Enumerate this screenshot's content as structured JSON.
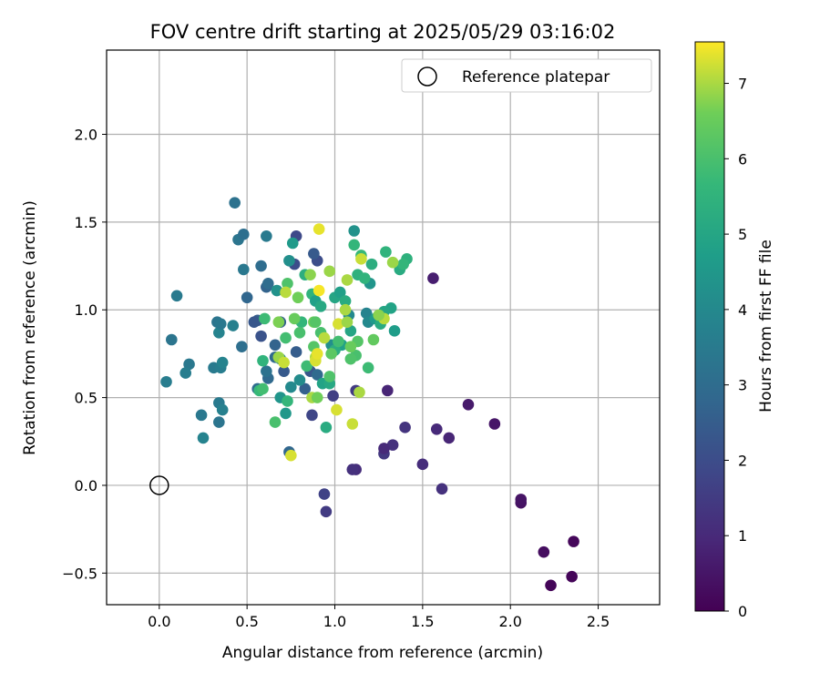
{
  "chart_data": {
    "type": "scatter",
    "title": "FOV centre drift starting at 2025/05/29 03:16:02",
    "xlabel": "Angular distance from reference (arcmin)",
    "ylabel": "Rotation from reference (arcmin)",
    "xlim": [
      -0.3,
      2.85
    ],
    "ylim": [
      -0.68,
      2.48
    ],
    "xticks": [
      0.0,
      0.5,
      1.0,
      1.5,
      2.0,
      2.5
    ],
    "xtick_labels": [
      "0.0",
      "0.5",
      "1.0",
      "1.5",
      "2.0",
      "2.5"
    ],
    "yticks": [
      -0.5,
      0.0,
      0.5,
      1.0,
      1.5,
      2.0
    ],
    "ytick_labels": [
      "−0.5",
      "0.0",
      "0.5",
      "1.0",
      "1.5",
      "2.0"
    ],
    "grid": true,
    "legend": {
      "placement": "top-right",
      "entries": [
        "Reference platepar"
      ]
    },
    "reference_point": {
      "x": 0.0,
      "y": 0.0
    },
    "colorbar": {
      "label": "Hours from first FF file",
      "colormap": "viridis",
      "range": [
        0,
        7.55
      ],
      "ticks": [
        0,
        1,
        2,
        3,
        4,
        5,
        6,
        7
      ],
      "tick_labels": [
        "0",
        "1",
        "2",
        "3",
        "4",
        "5",
        "6",
        "7"
      ]
    },
    "colors": {
      "grid": "#b0b0b0",
      "reference_marker": "#000000"
    },
    "points": [
      {
        "x": 2.23,
        "y": -0.57,
        "c": 0.1
      },
      {
        "x": 2.35,
        "y": -0.52,
        "c": 0.1
      },
      {
        "x": 2.19,
        "y": -0.38,
        "c": 0.3
      },
      {
        "x": 2.36,
        "y": -0.32,
        "c": 0.15
      },
      {
        "x": 2.06,
        "y": -0.1,
        "c": 0.4
      },
      {
        "x": 2.06,
        "y": -0.08,
        "c": 0.45
      },
      {
        "x": 1.91,
        "y": 0.35,
        "c": 0.5
      },
      {
        "x": 1.76,
        "y": 0.46,
        "c": 0.6
      },
      {
        "x": 1.56,
        "y": 1.18,
        "c": 0.7
      },
      {
        "x": 1.65,
        "y": 0.27,
        "c": 0.9
      },
      {
        "x": 1.58,
        "y": 0.32,
        "c": 1.0
      },
      {
        "x": 1.5,
        "y": 0.12,
        "c": 1.1
      },
      {
        "x": 1.61,
        "y": -0.02,
        "c": 1.2
      },
      {
        "x": 1.4,
        "y": 0.33,
        "c": 1.3
      },
      {
        "x": 1.33,
        "y": 0.23,
        "c": 1.2
      },
      {
        "x": 1.28,
        "y": 0.18,
        "c": 1.4
      },
      {
        "x": 1.28,
        "y": 0.21,
        "c": 1.0
      },
      {
        "x": 1.3,
        "y": 0.54,
        "c": 0.9
      },
      {
        "x": 1.12,
        "y": 0.09,
        "c": 1.1
      },
      {
        "x": 1.1,
        "y": 0.09,
        "c": 1.2
      },
      {
        "x": 1.12,
        "y": 0.54,
        "c": 1.5
      },
      {
        "x": 0.99,
        "y": 0.51,
        "c": 1.6
      },
      {
        "x": 0.94,
        "y": -0.05,
        "c": 1.7
      },
      {
        "x": 0.95,
        "y": -0.15,
        "c": 1.5
      },
      {
        "x": 0.87,
        "y": 0.4,
        "c": 1.8
      },
      {
        "x": 0.78,
        "y": 1.42,
        "c": 1.9
      },
      {
        "x": 0.77,
        "y": 1.26,
        "c": 2.0
      },
      {
        "x": 0.9,
        "y": 1.28,
        "c": 2.0
      },
      {
        "x": 0.88,
        "y": 1.32,
        "c": 2.4
      },
      {
        "x": 0.74,
        "y": 0.19,
        "c": 2.8
      },
      {
        "x": 0.78,
        "y": 0.76,
        "c": 2.5
      },
      {
        "x": 0.86,
        "y": 0.65,
        "c": 2.3
      },
      {
        "x": 0.83,
        "y": 0.55,
        "c": 2.6
      },
      {
        "x": 0.9,
        "y": 0.63,
        "c": 2.9
      },
      {
        "x": 0.71,
        "y": 0.65,
        "c": 2.4
      },
      {
        "x": 0.66,
        "y": 0.8,
        "c": 2.7
      },
      {
        "x": 0.66,
        "y": 0.73,
        "c": 2.9
      },
      {
        "x": 0.69,
        "y": 0.93,
        "c": 2.6
      },
      {
        "x": 0.58,
        "y": 0.85,
        "c": 2.2
      },
      {
        "x": 0.56,
        "y": 0.94,
        "c": 2.5
      },
      {
        "x": 0.54,
        "y": 0.93,
        "c": 2.3
      },
      {
        "x": 0.5,
        "y": 1.07,
        "c": 2.8
      },
      {
        "x": 0.61,
        "y": 1.13,
        "c": 2.7
      },
      {
        "x": 0.62,
        "y": 1.15,
        "c": 3.0
      },
      {
        "x": 0.62,
        "y": 0.61,
        "c": 2.9
      },
      {
        "x": 0.61,
        "y": 0.65,
        "c": 3.2
      },
      {
        "x": 0.56,
        "y": 0.55,
        "c": 3.0
      },
      {
        "x": 0.47,
        "y": 0.79,
        "c": 3.1
      },
      {
        "x": 0.43,
        "y": 1.61,
        "c": 3.2
      },
      {
        "x": 0.45,
        "y": 1.4,
        "c": 3.3
      },
      {
        "x": 0.48,
        "y": 1.43,
        "c": 3.1
      },
      {
        "x": 0.48,
        "y": 1.23,
        "c": 3.4
      },
      {
        "x": 0.58,
        "y": 1.25,
        "c": 3.0
      },
      {
        "x": 0.61,
        "y": 1.42,
        "c": 3.5
      },
      {
        "x": 0.1,
        "y": 1.08,
        "c": 3.5
      },
      {
        "x": 0.07,
        "y": 0.83,
        "c": 3.3
      },
      {
        "x": 0.33,
        "y": 0.93,
        "c": 3.3
      },
      {
        "x": 0.34,
        "y": 0.87,
        "c": 3.8
      },
      {
        "x": 0.35,
        "y": 0.92,
        "c": 3.4
      },
      {
        "x": 0.42,
        "y": 0.91,
        "c": 3.7
      },
      {
        "x": 0.17,
        "y": 0.69,
        "c": 3.4
      },
      {
        "x": 0.15,
        "y": 0.64,
        "c": 3.6
      },
      {
        "x": 0.31,
        "y": 0.67,
        "c": 3.5
      },
      {
        "x": 0.35,
        "y": 0.67,
        "c": 3.6
      },
      {
        "x": 0.36,
        "y": 0.7,
        "c": 3.8
      },
      {
        "x": 0.04,
        "y": 0.59,
        "c": 3.6
      },
      {
        "x": 0.34,
        "y": 0.47,
        "c": 3.5
      },
      {
        "x": 0.36,
        "y": 0.43,
        "c": 3.7
      },
      {
        "x": 0.24,
        "y": 0.4,
        "c": 3.4
      },
      {
        "x": 0.34,
        "y": 0.36,
        "c": 3.3
      },
      {
        "x": 0.25,
        "y": 0.27,
        "c": 3.8
      },
      {
        "x": 0.69,
        "y": 0.72,
        "c": 3.8
      },
      {
        "x": 0.75,
        "y": 0.56,
        "c": 4.0
      },
      {
        "x": 0.8,
        "y": 0.6,
        "c": 4.1
      },
      {
        "x": 0.74,
        "y": 1.28,
        "c": 4.2
      },
      {
        "x": 0.76,
        "y": 1.38,
        "c": 4.6
      },
      {
        "x": 0.67,
        "y": 1.11,
        "c": 4.3
      },
      {
        "x": 0.69,
        "y": 0.5,
        "c": 4.4
      },
      {
        "x": 0.72,
        "y": 0.41,
        "c": 4.5
      },
      {
        "x": 0.98,
        "y": 0.8,
        "c": 4.2
      },
      {
        "x": 1.08,
        "y": 0.97,
        "c": 4.0
      },
      {
        "x": 1.11,
        "y": 1.45,
        "c": 4.3
      },
      {
        "x": 1.18,
        "y": 0.98,
        "c": 3.8
      },
      {
        "x": 1.19,
        "y": 0.93,
        "c": 4.0
      },
      {
        "x": 1.2,
        "y": 1.15,
        "c": 4.4
      },
      {
        "x": 1.23,
        "y": 0.95,
        "c": 4.6
      },
      {
        "x": 1.34,
        "y": 0.88,
        "c": 4.7
      },
      {
        "x": 1.32,
        "y": 1.01,
        "c": 4.9
      },
      {
        "x": 1.28,
        "y": 0.99,
        "c": 5.0
      },
      {
        "x": 1.26,
        "y": 0.92,
        "c": 5.2
      },
      {
        "x": 1.09,
        "y": 0.88,
        "c": 5.0
      },
      {
        "x": 1.04,
        "y": 0.8,
        "c": 4.8
      },
      {
        "x": 1.0,
        "y": 0.77,
        "c": 5.3
      },
      {
        "x": 0.93,
        "y": 0.58,
        "c": 4.9
      },
      {
        "x": 0.97,
        "y": 0.58,
        "c": 5.1
      },
      {
        "x": 0.95,
        "y": 0.33,
        "c": 5.2
      },
      {
        "x": 0.83,
        "y": 1.2,
        "c": 5.3
      },
      {
        "x": 0.87,
        "y": 1.09,
        "c": 5.5
      },
      {
        "x": 0.89,
        "y": 1.05,
        "c": 4.8
      },
      {
        "x": 0.92,
        "y": 1.02,
        "c": 5.1
      },
      {
        "x": 1.0,
        "y": 1.07,
        "c": 5.0
      },
      {
        "x": 1.03,
        "y": 1.1,
        "c": 4.8
      },
      {
        "x": 1.06,
        "y": 1.05,
        "c": 5.2
      },
      {
        "x": 1.13,
        "y": 1.2,
        "c": 5.4
      },
      {
        "x": 1.11,
        "y": 1.37,
        "c": 5.6
      },
      {
        "x": 1.15,
        "y": 1.31,
        "c": 5.7
      },
      {
        "x": 1.17,
        "y": 1.18,
        "c": 5.5
      },
      {
        "x": 1.21,
        "y": 1.26,
        "c": 5.3
      },
      {
        "x": 1.29,
        "y": 1.33,
        "c": 5.5
      },
      {
        "x": 1.37,
        "y": 1.23,
        "c": 5.2
      },
      {
        "x": 1.41,
        "y": 1.29,
        "c": 5.4
      },
      {
        "x": 1.39,
        "y": 1.26,
        "c": 5.6
      },
      {
        "x": 0.57,
        "y": 0.54,
        "c": 5.7
      },
      {
        "x": 0.59,
        "y": 0.55,
        "c": 5.9
      },
      {
        "x": 0.59,
        "y": 0.71,
        "c": 5.5
      },
      {
        "x": 0.6,
        "y": 0.95,
        "c": 5.8
      },
      {
        "x": 0.66,
        "y": 0.36,
        "c": 6.0
      },
      {
        "x": 0.73,
        "y": 0.48,
        "c": 5.6
      },
      {
        "x": 0.72,
        "y": 0.84,
        "c": 5.9
      },
      {
        "x": 0.73,
        "y": 1.15,
        "c": 6.1
      },
      {
        "x": 0.81,
        "y": 0.93,
        "c": 5.6
      },
      {
        "x": 0.8,
        "y": 0.87,
        "c": 6.0
      },
      {
        "x": 0.84,
        "y": 0.68,
        "c": 5.8
      },
      {
        "x": 0.88,
        "y": 0.79,
        "c": 6.2
      },
      {
        "x": 0.92,
        "y": 0.87,
        "c": 6.0
      },
      {
        "x": 0.97,
        "y": 0.62,
        "c": 6.1
      },
      {
        "x": 0.98,
        "y": 0.75,
        "c": 6.3
      },
      {
        "x": 1.02,
        "y": 0.82,
        "c": 5.9
      },
      {
        "x": 1.12,
        "y": 0.74,
        "c": 6.0
      },
      {
        "x": 1.13,
        "y": 0.82,
        "c": 6.2
      },
      {
        "x": 1.19,
        "y": 0.67,
        "c": 5.8
      },
      {
        "x": 1.22,
        "y": 0.83,
        "c": 6.4
      },
      {
        "x": 1.09,
        "y": 0.72,
        "c": 6.1
      },
      {
        "x": 1.09,
        "y": 0.79,
        "c": 6.5
      },
      {
        "x": 0.79,
        "y": 1.07,
        "c": 6.6
      },
      {
        "x": 0.86,
        "y": 1.2,
        "c": 6.8
      },
      {
        "x": 0.97,
        "y": 1.22,
        "c": 6.9
      },
      {
        "x": 1.07,
        "y": 1.17,
        "c": 7.0
      },
      {
        "x": 1.15,
        "y": 1.29,
        "c": 7.2
      },
      {
        "x": 1.33,
        "y": 1.27,
        "c": 6.9
      },
      {
        "x": 1.28,
        "y": 0.95,
        "c": 7.1
      },
      {
        "x": 1.25,
        "y": 0.97,
        "c": 6.8
      },
      {
        "x": 1.06,
        "y": 1.0,
        "c": 7.0
      },
      {
        "x": 1.02,
        "y": 0.92,
        "c": 7.3
      },
      {
        "x": 1.07,
        "y": 0.93,
        "c": 6.9
      },
      {
        "x": 0.88,
        "y": 0.93,
        "c": 6.6
      },
      {
        "x": 0.77,
        "y": 0.95,
        "c": 6.5
      },
      {
        "x": 0.68,
        "y": 0.93,
        "c": 6.7
      },
      {
        "x": 0.72,
        "y": 1.1,
        "c": 7.1
      },
      {
        "x": 0.68,
        "y": 0.73,
        "c": 6.9
      },
      {
        "x": 0.71,
        "y": 0.7,
        "c": 7.2
      },
      {
        "x": 0.89,
        "y": 0.73,
        "c": 7.0
      },
      {
        "x": 0.89,
        "y": 0.71,
        "c": 7.3
      },
      {
        "x": 0.9,
        "y": 0.75,
        "c": 7.4
      },
      {
        "x": 0.94,
        "y": 0.84,
        "c": 7.1
      },
      {
        "x": 0.87,
        "y": 0.5,
        "c": 7.0
      },
      {
        "x": 0.9,
        "y": 0.5,
        "c": 6.6
      },
      {
        "x": 0.89,
        "y": 0.93,
        "c": 6.2
      },
      {
        "x": 1.01,
        "y": 0.43,
        "c": 7.3
      },
      {
        "x": 1.1,
        "y": 0.35,
        "c": 7.2
      },
      {
        "x": 1.14,
        "y": 0.53,
        "c": 7.0
      },
      {
        "x": 0.75,
        "y": 0.17,
        "c": 7.3
      },
      {
        "x": 0.91,
        "y": 1.46,
        "c": 7.4
      },
      {
        "x": 0.91,
        "y": 1.11,
        "c": 7.5
      }
    ]
  }
}
